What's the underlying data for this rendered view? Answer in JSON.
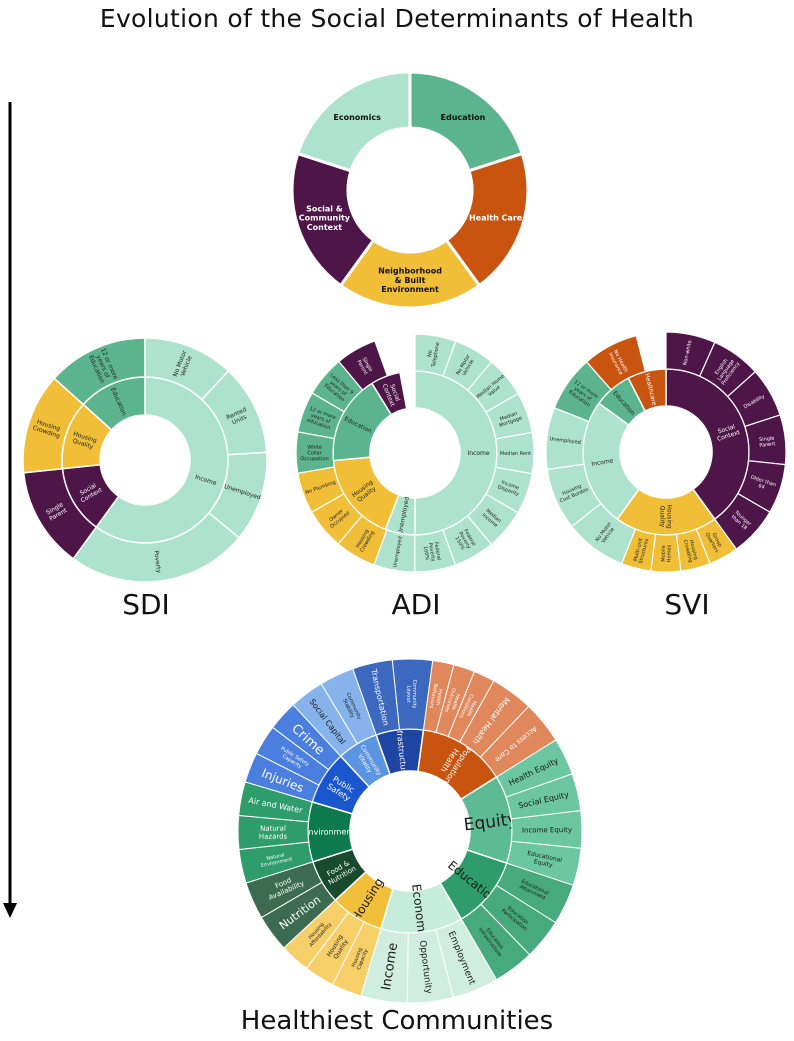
{
  "title": "Evolution of the Social Determinants of Health",
  "footer_title": "Healthiest Communities",
  "colors": {
    "mint": "#ade2cf",
    "green": "#5bb48d",
    "orange": "#c85410",
    "purple": "#4d1548",
    "yellow": "#f0bf37",
    "outline": "#ffffff"
  },
  "top_wheel": {
    "segments": [
      {
        "label": "Education",
        "color": "#5bb48d",
        "text": "#111111"
      },
      {
        "label": "Health Care",
        "color": "#c85410",
        "text": "#ffffff"
      },
      {
        "label": "Neighborhood & Built Environment",
        "color": "#f0bf37",
        "text": "#111111"
      },
      {
        "label": "Social & Community Context",
        "color": "#4d1548",
        "text": "#ffffff"
      },
      {
        "label": "Economics",
        "color": "#ade2cf",
        "text": "#111111"
      }
    ]
  },
  "sdi": {
    "label": "SDI",
    "inner": [
      {
        "label": "Income",
        "share": 0.6,
        "color": "#ade2cf",
        "text": "#222"
      },
      {
        "label": "Social Context",
        "share": 0.1333,
        "color": "#4d1548",
        "text": "#fff"
      },
      {
        "label": "Housing Quality",
        "share": 0.1333,
        "color": "#f0bf37",
        "text": "#222"
      },
      {
        "label": "Education",
        "share": 0.1333,
        "color": "#5bb48d",
        "text": "#222"
      }
    ],
    "outer": [
      {
        "label": "No Motor Vehicle",
        "share": 0.12,
        "color": "#ade2cf",
        "text": "#222"
      },
      {
        "label": "Rented Units",
        "share": 0.12,
        "color": "#ade2cf",
        "text": "#222"
      },
      {
        "label": "Unemployed",
        "share": 0.12,
        "color": "#ade2cf",
        "text": "#222"
      },
      {
        "label": "Poverty",
        "share": 0.24,
        "color": "#ade2cf",
        "text": "#222"
      },
      {
        "label": "Single Parent",
        "share": 0.1333,
        "color": "#4d1548",
        "text": "#fff"
      },
      {
        "label": "Housing Crowding",
        "share": 0.1333,
        "color": "#f0bf37",
        "text": "#222"
      },
      {
        "label": "12 or more years of Education",
        "share": 0.1333,
        "color": "#5bb48d",
        "text": "#222"
      }
    ]
  },
  "adi": {
    "label": "ADI",
    "inner": [
      {
        "label": "Income",
        "share": 0.5,
        "color": "#ade2cf",
        "text": "#222"
      },
      {
        "label": "Unemployed",
        "share": 0.0588,
        "color": "#ade2cf",
        "text": "#222"
      },
      {
        "label": "Housing Quality",
        "share": 0.1765,
        "color": "#f0bf37",
        "text": "#222"
      },
      {
        "label": "Education",
        "share": 0.1765,
        "color": "#5bb48d",
        "text": "#222"
      },
      {
        "label": "Social Context",
        "share": 0.0588,
        "color": "#4d1548",
        "text": "#fff"
      }
    ],
    "outer": [
      {
        "label": "No Telephone",
        "share": 0.0556,
        "color": "#ade2cf",
        "text": "#222"
      },
      {
        "label": "No Motor Vehicle",
        "share": 0.0556,
        "color": "#ade2cf",
        "text": "#222"
      },
      {
        "label": "Median Home Value",
        "share": 0.0556,
        "color": "#ade2cf",
        "text": "#222"
      },
      {
        "label": "Median Mortgage",
        "share": 0.0556,
        "color": "#ade2cf",
        "text": "#222"
      },
      {
        "label": "Median Rent",
        "share": 0.0556,
        "color": "#ade2cf",
        "text": "#222"
      },
      {
        "label": "Income Disparity",
        "share": 0.0556,
        "color": "#ade2cf",
        "text": "#222"
      },
      {
        "label": "Median Income",
        "share": 0.0556,
        "color": "#ade2cf",
        "text": "#222"
      },
      {
        "label": "Federal Poverty 150%",
        "share": 0.0556,
        "color": "#ade2cf",
        "text": "#222"
      },
      {
        "label": "Federal Poverty 100%",
        "share": 0.0556,
        "color": "#ade2cf",
        "text": "#222"
      },
      {
        "label": "Unemployed",
        "share": 0.0556,
        "color": "#ade2cf",
        "text": "#222"
      },
      {
        "label": "Housing Crowding",
        "share": 0.0556,
        "color": "#f0bf37",
        "text": "#222"
      },
      {
        "label": "Owner Occupied",
        "share": 0.0556,
        "color": "#f0bf37",
        "text": "#222"
      },
      {
        "label": "No Plumbing",
        "share": 0.0556,
        "color": "#f0bf37",
        "text": "#222"
      },
      {
        "label": "White Collar Occupation",
        "share": 0.0556,
        "color": "#5bb48d",
        "text": "#222"
      },
      {
        "label": "12 or more years of education",
        "share": 0.0556,
        "color": "#5bb48d",
        "text": "#222"
      },
      {
        "label": "Less than 9 years of Education",
        "share": 0.0556,
        "color": "#5bb48d",
        "text": "#222"
      },
      {
        "label": "Single Parent",
        "share": 0.0556,
        "color": "#4d1548",
        "text": "#fff"
      },
      {
        "label": "Social Context",
        "share": 0.0001,
        "color": "#4d1548",
        "text": "#fff"
      }
    ]
  },
  "svi": {
    "label": "SVI",
    "inner": [
      {
        "label": "Social Context",
        "share": 0.4,
        "color": "#4d1548",
        "text": "#fff"
      },
      {
        "label": "Housing Quality",
        "share": 0.2,
        "color": "#f0bf37",
        "text": "#222"
      },
      {
        "label": "Income",
        "share": 0.25,
        "color": "#ade2cf",
        "text": "#222"
      },
      {
        "label": "Education",
        "share": 0.075,
        "color": "#5bb48d",
        "text": "#222"
      },
      {
        "label": "Healthcare",
        "share": 0.075,
        "color": "#c85410",
        "text": "#fff"
      }
    ],
    "outer": [
      {
        "label": "Non-white",
        "share": 0.0667,
        "color": "#4d1548",
        "text": "#fff"
      },
      {
        "label": "English Language Proficiency",
        "share": 0.0667,
        "color": "#4d1548",
        "text": "#fff"
      },
      {
        "label": "Disability",
        "share": 0.0667,
        "color": "#4d1548",
        "text": "#fff"
      },
      {
        "label": "Single Parent",
        "share": 0.0667,
        "color": "#4d1548",
        "text": "#fff"
      },
      {
        "label": "Older than 64",
        "share": 0.0667,
        "color": "#4d1548",
        "text": "#fff"
      },
      {
        "label": "Younger than 18",
        "share": 0.0667,
        "color": "#4d1548",
        "text": "#fff"
      },
      {
        "label": "Group Quarters",
        "share": 0.04,
        "color": "#f0bf37",
        "text": "#222"
      },
      {
        "label": "Housing Crowding",
        "share": 0.04,
        "color": "#f0bf37",
        "text": "#222"
      },
      {
        "label": "Mobile Homes",
        "share": 0.04,
        "color": "#f0bf37",
        "text": "#222"
      },
      {
        "label": "Multi-unit Structures",
        "share": 0.04,
        "color": "#f0bf37",
        "text": "#222"
      },
      {
        "label": "No Motor Vehicle",
        "share": 0.0833,
        "color": "#ade2cf",
        "text": "#222"
      },
      {
        "label": "Housing Cost Burden",
        "share": 0.0833,
        "color": "#ade2cf",
        "text": "#222"
      },
      {
        "label": "Unemployed",
        "share": 0.0833,
        "color": "#ade2cf",
        "text": "#222"
      },
      {
        "label": "12 or more years of Education",
        "share": 0.075,
        "color": "#5bb48d",
        "text": "#222"
      },
      {
        "label": "No Health Insurance",
        "share": 0.075,
        "color": "#c85410",
        "text": "#fff"
      }
    ]
  },
  "healthiest": {
    "inner": [
      {
        "label": "Equity",
        "share": 0.14,
        "color": "#5cbb94",
        "text": "#1a1a1a",
        "size": 17
      },
      {
        "label": "Education",
        "share": 0.115,
        "color": "#2f9c6b",
        "text": "#1a1a1a",
        "size": 12
      },
      {
        "label": "Economy",
        "share": 0.13,
        "color": "#c6ecdc",
        "text": "#1a1a1a",
        "size": 12
      },
      {
        "label": "Housing",
        "share": 0.085,
        "color": "#f2bf3b",
        "text": "#1a1a1a",
        "size": 12
      },
      {
        "label": "Food & Nutrition",
        "share": 0.07,
        "color": "#184b2d",
        "text": "#ffffff",
        "size": 7
      },
      {
        "label": "Environment",
        "share": 0.095,
        "color": "#0c7a4e",
        "text": "#ffffff",
        "size": 8
      },
      {
        "label": "Public Safety",
        "share": 0.085,
        "color": "#1a56cd",
        "text": "#ffffff",
        "size": 8
      },
      {
        "label": "Community Vitality",
        "share": 0.065,
        "color": "#5b94e0",
        "text": "#ffffff",
        "size": 6
      },
      {
        "label": "Infrastructure",
        "share": 0.075,
        "color": "#1f45a3",
        "text": "#ffffff",
        "size": 8
      },
      {
        "label": "Population Health",
        "share": 0.14,
        "color": "#c85410",
        "text": "#ffffff",
        "size": 8
      }
    ],
    "outer": [
      {
        "label": "Health Equity",
        "share": 0.035,
        "color": "#6cc6a1",
        "text": "#1a1a1a",
        "size": 8
      },
      {
        "label": "Social Equity",
        "share": 0.035,
        "color": "#6cc6a1",
        "text": "#1a1a1a",
        "size": 8
      },
      {
        "label": "Income Equity",
        "share": 0.035,
        "color": "#6cc6a1",
        "text": "#1a1a1a",
        "size": 7
      },
      {
        "label": "Educational Equity",
        "share": 0.035,
        "color": "#6cc6a1",
        "text": "#1a1a1a",
        "size": 6
      },
      {
        "label": "Educational Attainment",
        "share": 0.0383,
        "color": "#47aa7c",
        "text": "#1a1a1a",
        "size": 5
      },
      {
        "label": "Education Participation",
        "share": 0.0383,
        "color": "#47aa7c",
        "text": "#1a1a1a",
        "size": 5
      },
      {
        "label": "Education Infrastructure",
        "share": 0.0384,
        "color": "#47aa7c",
        "text": "#1a1a1a",
        "size": 5
      },
      {
        "label": "Employment",
        "share": 0.0433,
        "color": "#cfeee0",
        "text": "#1a1a1a",
        "size": 9
      },
      {
        "label": "Opportunity",
        "share": 0.0433,
        "color": "#cfeee0",
        "text": "#1a1a1a",
        "size": 9
      },
      {
        "label": "Income",
        "share": 0.0434,
        "color": "#cfeee0",
        "text": "#1a1a1a",
        "size": 13
      },
      {
        "label": "Housing Capacity",
        "share": 0.0283,
        "color": "#f6cf68",
        "text": "#1a1a1a",
        "size": 5
      },
      {
        "label": "Housing Quality",
        "share": 0.0284,
        "color": "#f6cf68",
        "text": "#1a1a1a",
        "size": 6
      },
      {
        "label": "Housing Affordability",
        "share": 0.0283,
        "color": "#f6cf68",
        "text": "#1a1a1a",
        "size": 5
      },
      {
        "label": "Nutrition",
        "share": 0.035,
        "color": "#3d6b52",
        "text": "#ffffff",
        "size": 11
      },
      {
        "label": "Food Availability",
        "share": 0.035,
        "color": "#3d6b52",
        "text": "#ffffff",
        "size": 7
      },
      {
        "label": "Natural Environment",
        "share": 0.0317,
        "color": "#2f9c6b",
        "text": "#ffffff",
        "size": 5
      },
      {
        "label": "Natural Hazards",
        "share": 0.0316,
        "color": "#2f9c6b",
        "text": "#ffffff",
        "size": 7
      },
      {
        "label": "Air and Water",
        "share": 0.0317,
        "color": "#2f9c6b",
        "text": "#ffffff",
        "size": 8
      },
      {
        "label": "Injuries",
        "share": 0.0283,
        "color": "#4a7fe0",
        "text": "#ffffff",
        "size": 12
      },
      {
        "label": "Public Safety Capacity",
        "share": 0.0284,
        "color": "#4a7fe0",
        "text": "#ffffff",
        "size": 5
      },
      {
        "label": "Crime",
        "share": 0.0283,
        "color": "#4a7fe0",
        "text": "#ffffff",
        "size": 13
      },
      {
        "label": "Social Capital",
        "share": 0.0325,
        "color": "#86b3ec",
        "text": "#1a1a1a",
        "size": 8
      },
      {
        "label": "Community Stability",
        "share": 0.0325,
        "color": "#86b3ec",
        "text": "#1a1a1a",
        "size": 5
      },
      {
        "label": "Transportation",
        "share": 0.0375,
        "color": "#3d68bf",
        "text": "#ffffff",
        "size": 8
      },
      {
        "label": "Community Layout",
        "share": 0.0375,
        "color": "#3d68bf",
        "text": "#ffffff",
        "size": 5
      },
      {
        "label": "Health Behaviors",
        "share": 0.02,
        "color": "#e0875b",
        "text": "#ffffff",
        "size": 5
      },
      {
        "label": "Health Outcomes",
        "share": 0.02,
        "color": "#e0875b",
        "text": "#ffffff",
        "size": 5
      },
      {
        "label": "Health Conditions",
        "share": 0.02,
        "color": "#e0875b",
        "text": "#ffffff",
        "size": 5
      },
      {
        "label": "Mental Health",
        "share": 0.04,
        "color": "#e0875b",
        "text": "#ffffff",
        "size": 8
      },
      {
        "label": "Access to Care",
        "share": 0.04,
        "color": "#e0875b",
        "text": "#ffffff",
        "size": 7
      }
    ]
  }
}
